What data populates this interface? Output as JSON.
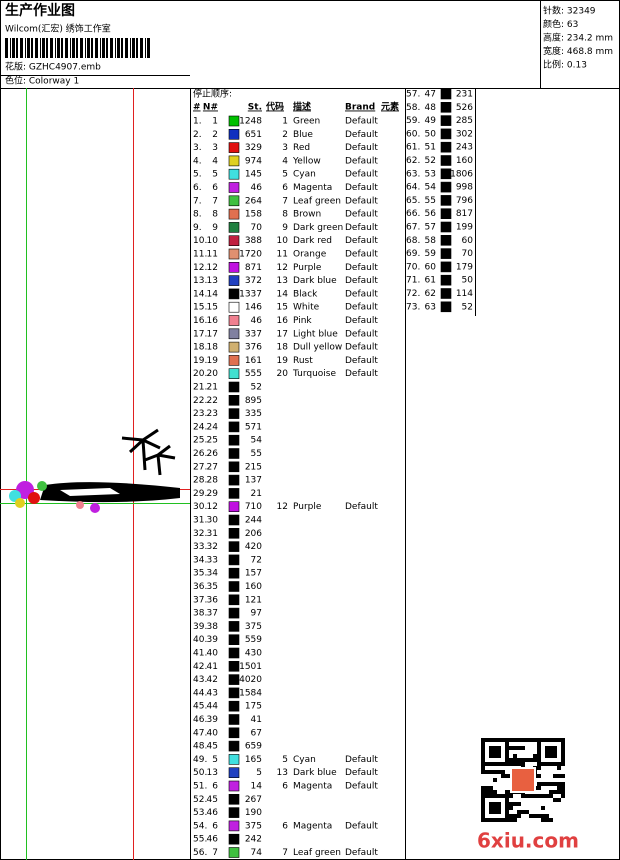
{
  "header": {
    "title": "生产作业图",
    "studio": "Wilcom(汇宏) 绣饰工作室",
    "design": "花版: GZHC4907.emb",
    "colorway": "色位: Colorway 1"
  },
  "stats": [
    "针数: 32349",
    "颜色: 63",
    "高度: 234.2 mm",
    "宽度: 468.8 mm",
    "比例: 0.13"
  ],
  "table": {
    "caption": "停止顺序:",
    "columns": [
      "#",
      "N#",
      "St.",
      "代码",
      "描述",
      "Brand",
      "元素"
    ],
    "rows": [
      {
        "index": "1.",
        "n": 1,
        "color": "#00c000",
        "st": 1248,
        "code": 1,
        "desc": "Green",
        "brand": "Default"
      },
      {
        "index": "2.",
        "n": 2,
        "color": "#1030c0",
        "st": 651,
        "code": 2,
        "desc": "Blue",
        "brand": "Default"
      },
      {
        "index": "3.",
        "n": 3,
        "color": "#e01010",
        "st": 329,
        "code": 3,
        "desc": "Red",
        "brand": "Default"
      },
      {
        "index": "4.",
        "n": 4,
        "color": "#e0d020",
        "st": 974,
        "code": 4,
        "desc": "Yellow",
        "brand": "Default"
      },
      {
        "index": "5.",
        "n": 5,
        "color": "#40e0e0",
        "st": 145,
        "code": 5,
        "desc": "Cyan",
        "brand": "Default"
      },
      {
        "index": "6.",
        "n": 6,
        "color": "#c020e0",
        "st": 46,
        "code": 6,
        "desc": "Magenta",
        "brand": "Default"
      },
      {
        "index": "7.",
        "n": 7,
        "color": "#40c040",
        "st": 264,
        "code": 7,
        "desc": "Leaf green",
        "brand": "Default"
      },
      {
        "index": "8.",
        "n": 8,
        "color": "#e07050",
        "st": 158,
        "code": 8,
        "desc": "Brown",
        "brand": "Default"
      },
      {
        "index": "9.",
        "n": 9,
        "color": "#208040",
        "st": 70,
        "code": 9,
        "desc": "Dark green",
        "brand": "Default"
      },
      {
        "index": "10.",
        "n": 10,
        "color": "#c02040",
        "st": 388,
        "code": 10,
        "desc": "Dark red",
        "brand": "Default"
      },
      {
        "index": "11.",
        "n": 11,
        "color": "#e09070",
        "st": 1720,
        "code": 11,
        "desc": "Orange",
        "brand": "Default"
      },
      {
        "index": "12.",
        "n": 12,
        "color": "#c010e0",
        "st": 871,
        "code": 12,
        "desc": "Purple",
        "brand": "Default"
      },
      {
        "index": "13.",
        "n": 13,
        "color": "#2040c0",
        "st": 372,
        "code": 13,
        "desc": "Dark blue",
        "brand": "Default"
      },
      {
        "index": "14.",
        "n": 14,
        "color": "#000000",
        "st": 1337,
        "code": 14,
        "desc": "Black",
        "brand": "Default"
      },
      {
        "index": "15.",
        "n": 15,
        "color": "#ffffff",
        "st": 146,
        "code": 15,
        "desc": "White",
        "brand": "Default"
      },
      {
        "index": "16.",
        "n": 16,
        "color": "#f08090",
        "st": 46,
        "code": 16,
        "desc": "Pink",
        "brand": "Default"
      },
      {
        "index": "17.",
        "n": 17,
        "color": "#8080a0",
        "st": 337,
        "code": 17,
        "desc": "Light blue",
        "brand": "Default"
      },
      {
        "index": "18.",
        "n": 18,
        "color": "#d0b070",
        "st": 376,
        "code": 18,
        "desc": "Dull yellow",
        "brand": "Default"
      },
      {
        "index": "19.",
        "n": 19,
        "color": "#e07050",
        "st": 161,
        "code": 19,
        "desc": "Rust",
        "brand": "Default"
      },
      {
        "index": "20.",
        "n": 20,
        "color": "#40e0d0",
        "st": 555,
        "code": 20,
        "desc": "Turquoise",
        "brand": "Default"
      },
      {
        "index": "21.",
        "n": 21,
        "color": "#000000",
        "st": 52
      },
      {
        "index": "22.",
        "n": 22,
        "color": "#000000",
        "st": 895
      },
      {
        "index": "23.",
        "n": 23,
        "color": "#000000",
        "st": 335
      },
      {
        "index": "24.",
        "n": 24,
        "color": "#000000",
        "st": 571
      },
      {
        "index": "25.",
        "n": 25,
        "color": "#000000",
        "st": 54
      },
      {
        "index": "26.",
        "n": 26,
        "color": "#000000",
        "st": 55
      },
      {
        "index": "27.",
        "n": 27,
        "color": "#000000",
        "st": 215
      },
      {
        "index": "28.",
        "n": 28,
        "color": "#000000",
        "st": 137
      },
      {
        "index": "29.",
        "n": 29,
        "color": "#000000",
        "st": 21
      },
      {
        "index": "30.",
        "n": 12,
        "color": "#c010e0",
        "st": 710,
        "code": 12,
        "desc": "Purple",
        "brand": "Default"
      },
      {
        "index": "31.",
        "n": 30,
        "color": "#000000",
        "st": 244
      },
      {
        "index": "32.",
        "n": 31,
        "color": "#000000",
        "st": 206
      },
      {
        "index": "33.",
        "n": 32,
        "color": "#000000",
        "st": 420
      },
      {
        "index": "34.",
        "n": 33,
        "color": "#000000",
        "st": 72
      },
      {
        "index": "35.",
        "n": 34,
        "color": "#000000",
        "st": 157
      },
      {
        "index": "36.",
        "n": 35,
        "color": "#000000",
        "st": 160
      },
      {
        "index": "37.",
        "n": 36,
        "color": "#000000",
        "st": 121
      },
      {
        "index": "38.",
        "n": 37,
        "color": "#000000",
        "st": 97
      },
      {
        "index": "39.",
        "n": 38,
        "color": "#000000",
        "st": 375
      },
      {
        "index": "40.",
        "n": 39,
        "color": "#000000",
        "st": 559
      },
      {
        "index": "41.",
        "n": 40,
        "color": "#000000",
        "st": 430
      },
      {
        "index": "42.",
        "n": 41,
        "color": "#000000",
        "st": 1501
      },
      {
        "index": "43.",
        "n": 42,
        "color": "#000000",
        "st": 4020
      },
      {
        "index": "44.",
        "n": 43,
        "color": "#000000",
        "st": 1584
      },
      {
        "index": "45.",
        "n": 44,
        "color": "#000000",
        "st": 175
      },
      {
        "index": "46.",
        "n": 39,
        "color": "#000000",
        "st": 41
      },
      {
        "index": "47.",
        "n": 40,
        "color": "#000000",
        "st": 67
      },
      {
        "index": "48.",
        "n": 45,
        "color": "#000000",
        "st": 659
      },
      {
        "index": "49.",
        "n": 5,
        "color": "#40e0e0",
        "st": 165,
        "code": 5,
        "desc": "Cyan",
        "brand": "Default"
      },
      {
        "index": "50.",
        "n": 13,
        "color": "#2040c0",
        "st": 5,
        "code": 13,
        "desc": "Dark blue",
        "brand": "Default"
      },
      {
        "index": "51.",
        "n": 6,
        "color": "#c020e0",
        "st": 14,
        "code": 6,
        "desc": "Magenta",
        "brand": "Default"
      },
      {
        "index": "52.",
        "n": 45,
        "color": "#000000",
        "st": 267
      },
      {
        "index": "53.",
        "n": 46,
        "color": "#000000",
        "st": 190
      },
      {
        "index": "54.",
        "n": 6,
        "color": "#c020e0",
        "st": 375,
        "code": 6,
        "desc": "Magenta",
        "brand": "Default"
      },
      {
        "index": "55.",
        "n": 46,
        "color": "#000000",
        "st": 242
      },
      {
        "index": "56.",
        "n": 7,
        "color": "#40c040",
        "st": 74,
        "code": 7,
        "desc": "Leaf green",
        "brand": "Default"
      }
    ],
    "rows2": [
      {
        "index": "57.",
        "n": 47,
        "color": "#000000",
        "st": 231
      },
      {
        "index": "58.",
        "n": 48,
        "color": "#000000",
        "st": 526
      },
      {
        "index": "59.",
        "n": 49,
        "color": "#000000",
        "st": 285
      },
      {
        "index": "60.",
        "n": 50,
        "color": "#000000",
        "st": 302
      },
      {
        "index": "61.",
        "n": 51,
        "color": "#000000",
        "st": 243
      },
      {
        "index": "62.",
        "n": 52,
        "color": "#000000",
        "st": 160
      },
      {
        "index": "63.",
        "n": 53,
        "color": "#000000",
        "st": 1806
      },
      {
        "index": "64.",
        "n": 54,
        "color": "#000000",
        "st": 998
      },
      {
        "index": "65.",
        "n": 55,
        "color": "#000000",
        "st": 796
      },
      {
        "index": "66.",
        "n": 56,
        "color": "#000000",
        "st": 817
      },
      {
        "index": "67.",
        "n": 57,
        "color": "#000000",
        "st": 199
      },
      {
        "index": "68.",
        "n": 58,
        "color": "#000000",
        "st": 60
      },
      {
        "index": "69.",
        "n": 59,
        "color": "#000000",
        "st": 70
      },
      {
        "index": "70.",
        "n": 60,
        "color": "#000000",
        "st": 179
      },
      {
        "index": "71.",
        "n": 61,
        "color": "#000000",
        "st": 50
      },
      {
        "index": "72.",
        "n": 62,
        "color": "#000000",
        "st": 114
      },
      {
        "index": "73.",
        "n": 63,
        "color": "#000000",
        "st": 52
      }
    ]
  },
  "watermark": "6xiu.com"
}
